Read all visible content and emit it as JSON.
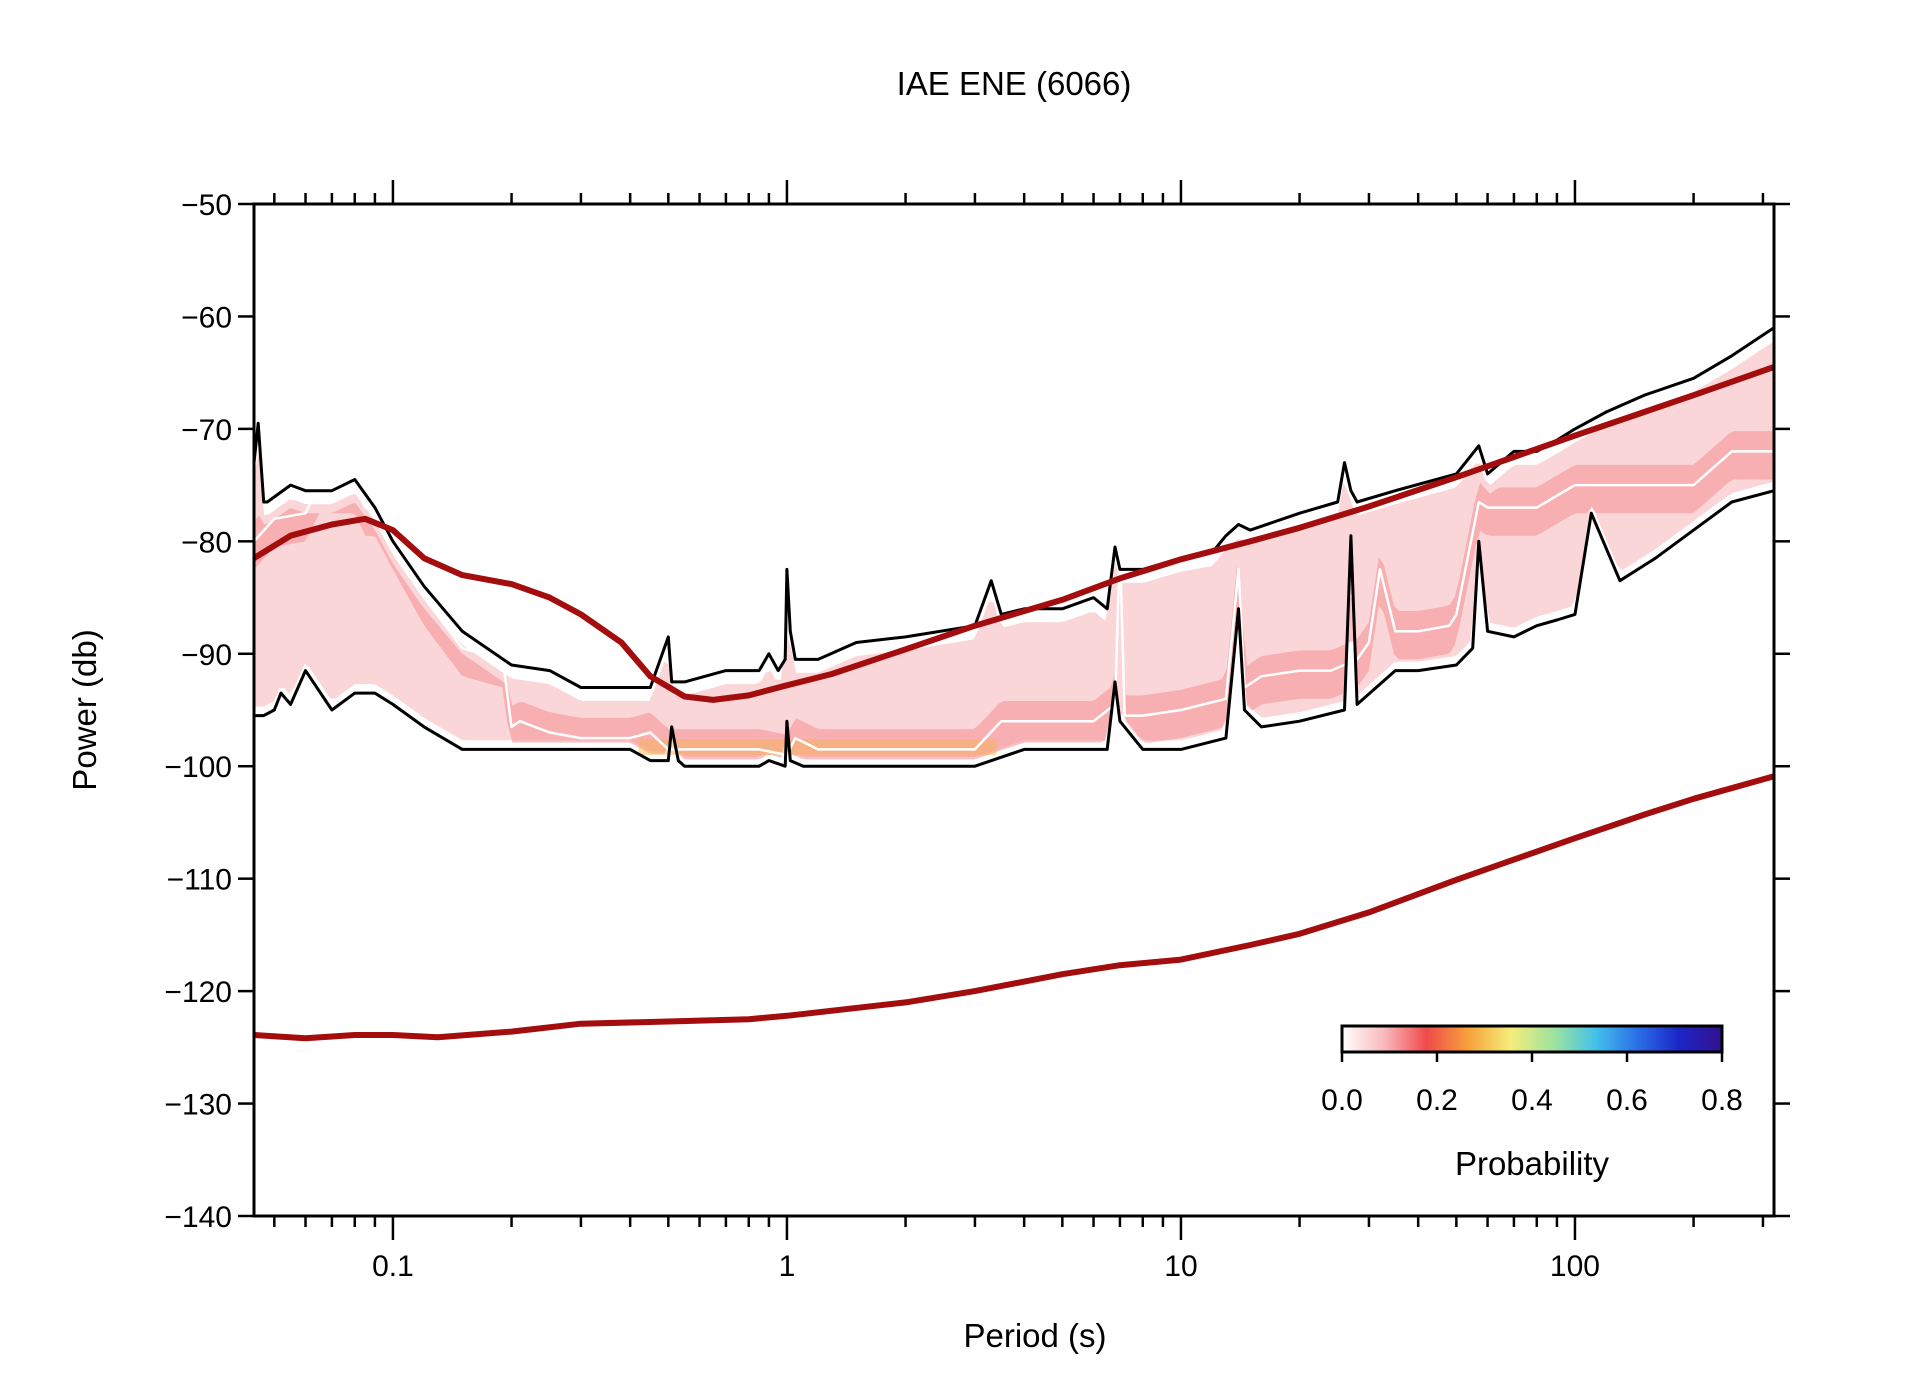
{
  "chart_data": {
    "type": "area",
    "title": "IAE ENE (6066)",
    "xlabel": "Period (s)",
    "ylabel": "Power (db)",
    "x_scale": "log",
    "xlim": [
      0.0444,
      320
    ],
    "ylim": [
      -140,
      -50
    ],
    "x_tick_labels": [
      "0.1",
      "1",
      "10",
      "100"
    ],
    "x_ticks": [
      0.1,
      1,
      10,
      100
    ],
    "y_ticks": [
      -50,
      -60,
      -70,
      -80,
      -90,
      -100,
      -110,
      -120,
      -130,
      -140
    ],
    "y_tick_labels": [
      "−50",
      "−60",
      "−70",
      "−80",
      "−90",
      "−100",
      "−110",
      "−120",
      "−130",
      "−140"
    ],
    "grid": false,
    "colorbar": {
      "label": "Probability",
      "ticks": [
        "0.0",
        "0.2",
        "0.4",
        "0.6",
        "0.8"
      ],
      "range": [
        0,
        0.8
      ],
      "placement": "bottom-right",
      "colors": [
        "#ffffff",
        "#f9b9bd",
        "#ef4a4a",
        "#f7a23c",
        "#f6ec7a",
        "#9fe39d",
        "#43c1ea",
        "#2a6fe8",
        "#1c25c6",
        "#32118c"
      ]
    },
    "series": [
      {
        "name": "",
        "role": "new-high-noise-model",
        "color": "#a30d0d",
        "x": [
          0.0444,
          0.055,
          0.07,
          0.085,
          0.1,
          0.12,
          0.15,
          0.2,
          0.25,
          0.3,
          0.38,
          0.45,
          0.55,
          0.65,
          0.8,
          1.0,
          1.3,
          2.0,
          3.0,
          5.0,
          7.0,
          10,
          15,
          20,
          30,
          50,
          70,
          100,
          150,
          200,
          320
        ],
        "y": [
          -81.5,
          -79.5,
          -78.5,
          -78.0,
          -79.0,
          -81.5,
          -83.0,
          -83.8,
          -85.0,
          -86.5,
          -89.0,
          -92.0,
          -93.8,
          -94.1,
          -93.7,
          -92.8,
          -91.8,
          -89.6,
          -87.5,
          -85.2,
          -83.3,
          -81.6,
          -80.0,
          -78.8,
          -76.9,
          -74.3,
          -72.5,
          -70.6,
          -68.5,
          -67.0,
          -64.5
        ]
      },
      {
        "name": "",
        "role": "new-low-noise-model",
        "color": "#a30d0d",
        "x": [
          0.0444,
          0.06,
          0.08,
          0.1,
          0.13,
          0.2,
          0.3,
          0.5,
          0.8,
          1.0,
          2.0,
          3.0,
          5.0,
          7.0,
          10,
          15,
          20,
          30,
          50,
          70,
          100,
          150,
          200,
          320
        ],
        "y": [
          -123.9,
          -124.2,
          -123.9,
          -123.9,
          -124.1,
          -123.6,
          -122.9,
          -122.7,
          -122.5,
          -122.2,
          -121.0,
          -120.0,
          -118.5,
          -117.7,
          -117.2,
          -115.9,
          -114.9,
          -113.0,
          -110.1,
          -108.3,
          -106.4,
          -104.3,
          -102.9,
          -100.9
        ]
      },
      {
        "name": "",
        "role": "max-envelope",
        "color": "#000000",
        "x": [
          0.0444,
          0.0455,
          0.047,
          0.048,
          0.055,
          0.06,
          0.065,
          0.07,
          0.08,
          0.09,
          0.1,
          0.12,
          0.15,
          0.2,
          0.25,
          0.3,
          0.4,
          0.45,
          0.5,
          0.51,
          0.53,
          0.55,
          0.7,
          0.85,
          0.9,
          0.95,
          0.99,
          1.0,
          1.02,
          1.05,
          1.2,
          1.5,
          2.0,
          3.0,
          3.3,
          3.5,
          4.0,
          5.0,
          6.0,
          6.5,
          6.8,
          7.0,
          8.0,
          10,
          12,
          13,
          14,
          15,
          20,
          25,
          26,
          27,
          28,
          35,
          50,
          57,
          60,
          70,
          80,
          90,
          100,
          120,
          150,
          200,
          250,
          320
        ],
        "y": [
          -73.0,
          -69.5,
          -76.5,
          -76.5,
          -75.0,
          -75.5,
          -75.5,
          -75.5,
          -74.5,
          -77.0,
          -80.0,
          -84.0,
          -88.0,
          -91.0,
          -91.5,
          -93.0,
          -93.0,
          -93.0,
          -88.5,
          -92.5,
          -92.5,
          -92.5,
          -91.5,
          -91.5,
          -90.0,
          -91.5,
          -90.5,
          -82.5,
          -88.0,
          -90.5,
          -90.5,
          -89.0,
          -88.5,
          -87.5,
          -83.5,
          -86.5,
          -86.0,
          -86.0,
          -85.0,
          -86.0,
          -80.5,
          -82.5,
          -82.5,
          -81.5,
          -81.0,
          -79.5,
          -78.5,
          -79.0,
          -77.5,
          -76.5,
          -73.0,
          -75.5,
          -76.5,
          -75.5,
          -74.0,
          -71.5,
          -74.0,
          -72.0,
          -72.0,
          -71.0,
          -70.0,
          -68.5,
          -67.0,
          -65.5,
          -63.5,
          -61.0
        ]
      },
      {
        "name": "",
        "role": "min-envelope",
        "color": "#000000",
        "x": [
          0.0444,
          0.047,
          0.05,
          0.052,
          0.055,
          0.06,
          0.07,
          0.08,
          0.09,
          0.1,
          0.12,
          0.15,
          0.2,
          0.3,
          0.4,
          0.45,
          0.5,
          0.51,
          0.53,
          0.55,
          0.7,
          0.85,
          0.9,
          0.99,
          1.0,
          1.02,
          1.1,
          1.5,
          2.0,
          3.0,
          4.0,
          5.0,
          6.0,
          6.5,
          6.8,
          7.0,
          8.0,
          10,
          13,
          14,
          14.5,
          16,
          20,
          26,
          27,
          28,
          35,
          40,
          50,
          55,
          57,
          60,
          70,
          80,
          90,
          100,
          110,
          130,
          160,
          200,
          250,
          320
        ],
        "y": [
          -95.5,
          -95.5,
          -95.0,
          -93.5,
          -94.5,
          -91.5,
          -95.0,
          -93.5,
          -93.5,
          -94.5,
          -96.5,
          -98.5,
          -98.5,
          -98.5,
          -98.5,
          -99.5,
          -99.5,
          -96.5,
          -99.5,
          -100.0,
          -100.0,
          -100.0,
          -99.5,
          -100.0,
          -96.0,
          -99.5,
          -100.0,
          -100.0,
          -100.0,
          -100.0,
          -98.5,
          -98.5,
          -98.5,
          -98.5,
          -92.5,
          -96.0,
          -98.5,
          -98.5,
          -97.5,
          -86.0,
          -95.0,
          -96.5,
          -96.0,
          -95.0,
          -79.5,
          -94.5,
          -91.5,
          -91.5,
          -91.0,
          -89.5,
          -80.0,
          -88.0,
          -88.5,
          -87.5,
          -87.0,
          -86.5,
          -77.5,
          -83.5,
          -81.5,
          -79.0,
          -76.5,
          -75.5
        ]
      },
      {
        "name": "",
        "role": "mode",
        "color": "#ffffff",
        "x": [
          0.0444,
          0.05,
          0.06,
          0.065,
          0.07,
          0.08,
          0.085,
          0.09,
          0.1,
          0.12,
          0.15,
          0.19,
          0.2,
          0.21,
          0.25,
          0.3,
          0.4,
          0.45,
          0.5,
          0.55,
          0.7,
          0.85,
          1.0,
          1.05,
          1.2,
          1.5,
          2.0,
          3.0,
          3.5,
          4.0,
          5.0,
          6.0,
          6.8,
          7.0,
          7.2,
          8.0,
          10,
          13,
          14,
          14.5,
          16,
          20,
          24,
          28,
          30,
          32,
          35,
          40,
          48,
          50,
          57,
          60,
          80,
          100,
          110,
          150,
          200,
          250,
          320
        ],
        "y": [
          -80.0,
          -78.0,
          -77.5,
          -75.0,
          -75.0,
          -75.0,
          -77.0,
          -77.0,
          -80.0,
          -85.0,
          -89.5,
          -90.5,
          -96.5,
          -96.0,
          -97.0,
          -97.5,
          -97.5,
          -97.0,
          -98.5,
          -98.5,
          -98.5,
          -98.5,
          -99.0,
          -97.5,
          -98.5,
          -98.5,
          -98.5,
          -98.5,
          -96.0,
          -96.0,
          -96.0,
          -96.0,
          -94.5,
          -80.5,
          -95.5,
          -95.5,
          -95.0,
          -94.0,
          -82.5,
          -93.0,
          -92.0,
          -91.5,
          -91.5,
          -90.5,
          -89.0,
          -82.5,
          -88.0,
          -88.0,
          -87.5,
          -86.5,
          -76.5,
          -77.0,
          -77.0,
          -75.0,
          -75.0,
          -75.0,
          -75.0,
          -72.0,
          -72.0
        ]
      }
    ]
  }
}
